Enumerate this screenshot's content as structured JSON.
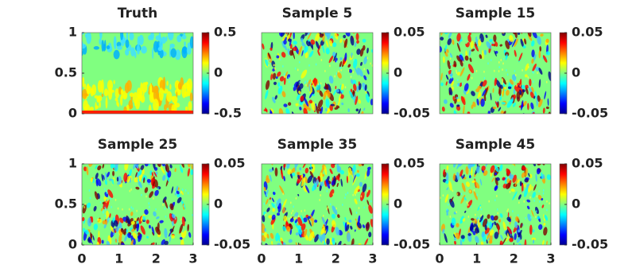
{
  "chart_data": [
    {
      "type": "heatmap",
      "title": "Truth",
      "xlim": [
        0,
        3
      ],
      "ylim": [
        0,
        1
      ],
      "yticks": [
        0,
        0.5,
        1
      ],
      "colorbar": {
        "lim": [
          -0.5,
          0.5
        ],
        "ticks": [
          -0.5,
          0,
          0.5
        ]
      }
    },
    {
      "type": "heatmap",
      "title": "Sample 5",
      "xlim": [
        0,
        3
      ],
      "ylim": [
        0,
        1
      ],
      "colorbar": {
        "lim": [
          -0.05,
          0.05
        ],
        "ticks": [
          -0.05,
          0,
          0.05
        ]
      }
    },
    {
      "type": "heatmap",
      "title": "Sample 15",
      "xlim": [
        0,
        3
      ],
      "ylim": [
        0,
        1
      ],
      "colorbar": {
        "lim": [
          -0.05,
          0.05
        ],
        "ticks": [
          -0.05,
          0,
          0.05
        ]
      }
    },
    {
      "type": "heatmap",
      "title": "Sample 25",
      "xlim": [
        0,
        3
      ],
      "ylim": [
        0,
        1
      ],
      "xticks": [
        0,
        1,
        2,
        3
      ],
      "yticks": [
        0,
        0.5,
        1
      ],
      "colorbar": {
        "lim": [
          -0.05,
          0.05
        ],
        "ticks": [
          -0.05,
          0,
          0.05
        ]
      }
    },
    {
      "type": "heatmap",
      "title": "Sample 35",
      "xlim": [
        0,
        3
      ],
      "ylim": [
        0,
        1
      ],
      "xticks": [
        0,
        1,
        2,
        3
      ],
      "colorbar": {
        "lim": [
          -0.05,
          0.05
        ],
        "ticks": [
          -0.05,
          0,
          0.05
        ]
      }
    },
    {
      "type": "heatmap",
      "title": "Sample 45",
      "xlim": [
        0,
        3
      ],
      "ylim": [
        0,
        1
      ],
      "xticks": [
        0,
        1,
        2,
        3
      ],
      "colorbar": {
        "lim": [
          -0.05,
          0.05
        ],
        "ticks": [
          -0.05,
          0,
          0.05
        ]
      }
    }
  ]
}
